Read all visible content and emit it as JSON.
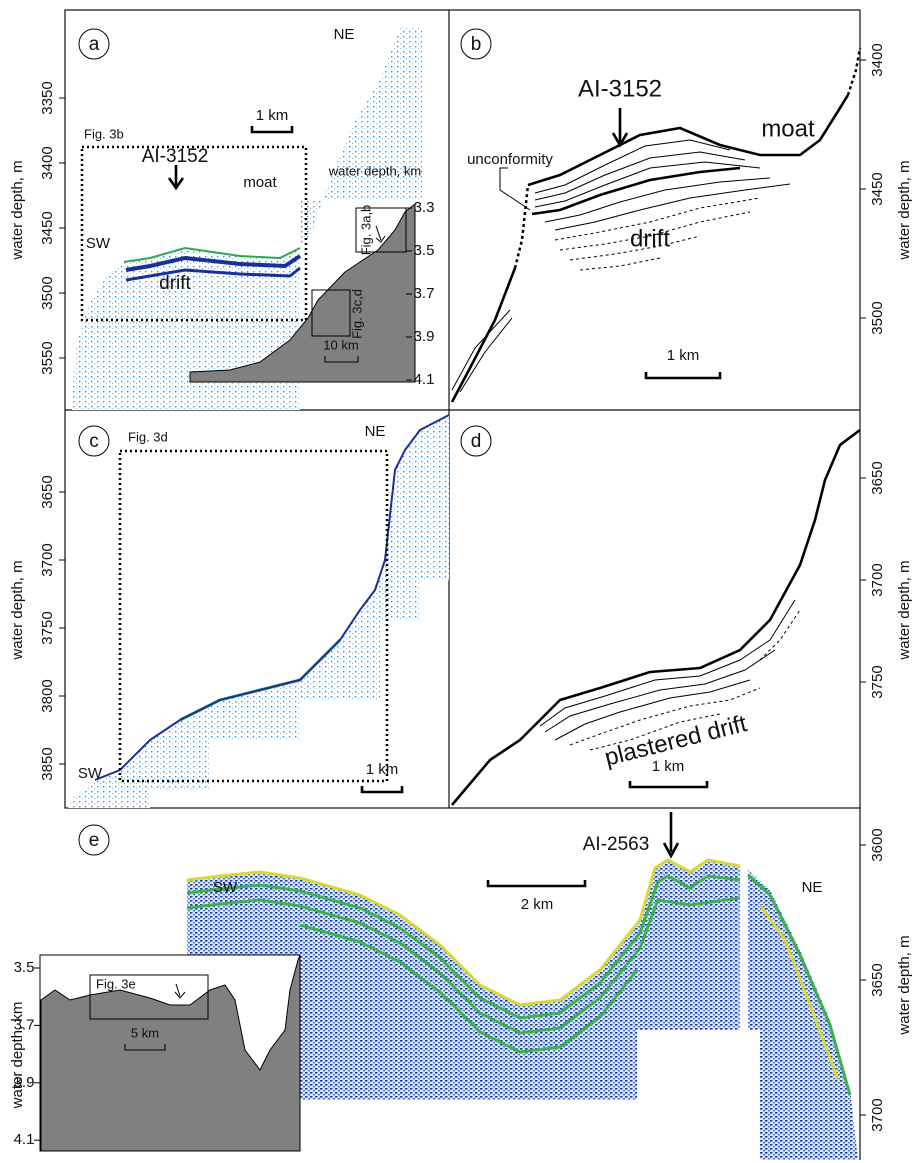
{
  "panels": {
    "a": {
      "label": "a",
      "ne": "NE",
      "sw": "SW",
      "fig_box": "Fig. 3b",
      "core": "AI-3152",
      "moat": "moat",
      "drift": "drift",
      "scale": "1 km",
      "axis_label": "water depth, m",
      "yticks": [
        3350,
        3400,
        3450,
        3500,
        3550
      ],
      "inset": {
        "axis_label": "water depth, km",
        "ticks": [
          3.3,
          3.5,
          3.7,
          3.9,
          4.1
        ],
        "box_1": "Fig. 3a,b",
        "box_2": "Fig. 3c,d",
        "scale": "10 km"
      }
    },
    "b": {
      "label": "b",
      "core": "AI-3152",
      "moat": "moat",
      "unconformity": "unconformity",
      "drift": "drift",
      "scale": "1 km",
      "axis_label": "water depth, m",
      "yticks": [
        3400,
        3450,
        3500
      ]
    },
    "c": {
      "label": "c",
      "fig_box": "Fig. 3d",
      "ne": "NE",
      "sw": "SW",
      "scale": "1 km",
      "axis_label": "water depth, m",
      "yticks": [
        3650,
        3700,
        3750,
        3800,
        3850
      ]
    },
    "d": {
      "label": "d",
      "annotation": "plastered drift",
      "scale": "1 km",
      "axis_label": "water depth, m",
      "yticks": [
        3650,
        3700,
        3750
      ]
    },
    "e": {
      "label": "e",
      "core": "AI-2563",
      "sw": "SW",
      "ne": "NE",
      "scale": "2 km",
      "axis_label": "water depth, m",
      "yticks": [
        3600,
        3650,
        3700
      ],
      "inset": {
        "axis_label": "water depth, km",
        "ticks": [
          3.5,
          3.7,
          3.9,
          4.1
        ],
        "box": "Fig. 3e",
        "scale": "5 km"
      }
    }
  }
}
